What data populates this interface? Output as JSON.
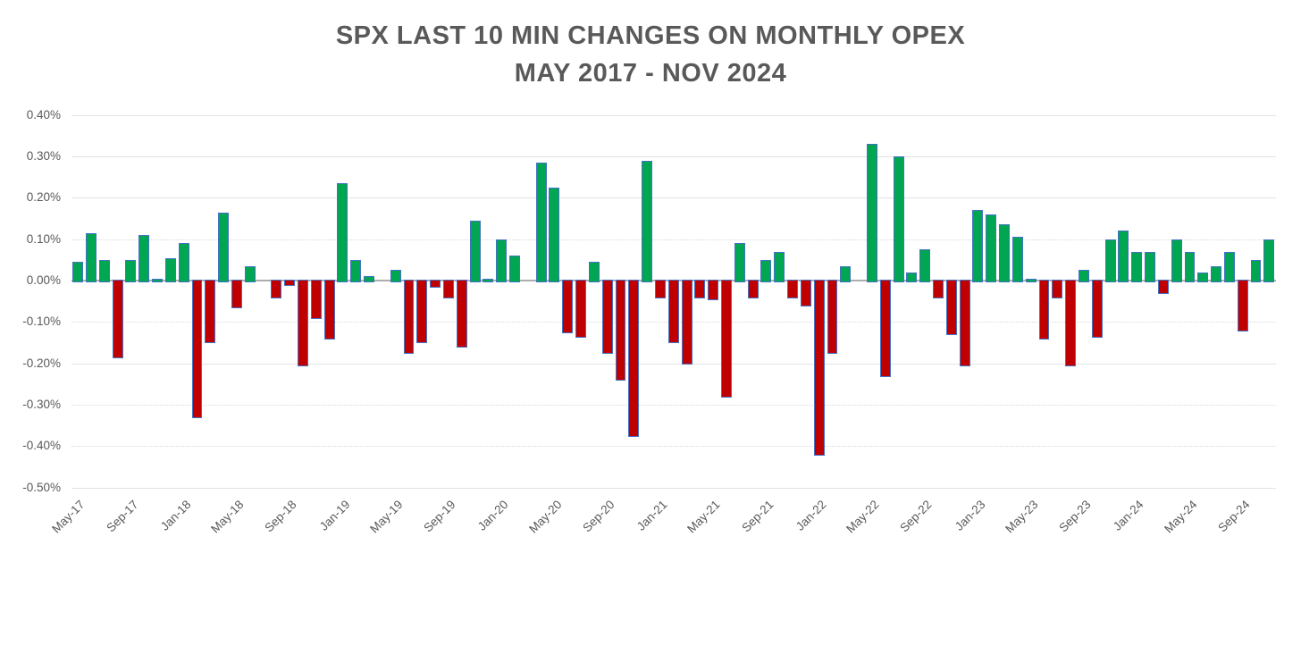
{
  "title": {
    "line1": "SPX LAST 10 MIN CHANGES ON MONTHLY OPEX",
    "line2": "MAY 2017 - NOV 2024"
  },
  "chart_data": {
    "type": "bar",
    "title": "SPX LAST 10 MIN CHANGES ON MONTHLY OPEX",
    "subtitle": "MAY 2017 - NOV 2024",
    "xlabel": "",
    "ylabel": "",
    "unit": "%",
    "ylim": [
      -0.5,
      0.4
    ],
    "y_tick_step": 0.1,
    "grid": true,
    "legend": false,
    "y_ticks": [
      "0.40%",
      "0.30%",
      "0.20%",
      "0.10%",
      "0.00%",
      "-0.10%",
      "-0.20%",
      "-0.30%",
      "-0.40%",
      "-0.50%"
    ],
    "x_axis_labeled_ticks": [
      "May-17",
      "Sep-17",
      "Jan-18",
      "May-18",
      "Sep-18",
      "Jan-19",
      "May-19",
      "Sep-19",
      "Jan-20",
      "May-20",
      "Sep-20",
      "Jan-21",
      "May-21",
      "Sep-21",
      "Jan-22",
      "May-22",
      "Sep-22",
      "Jan-23",
      "May-23",
      "Sep-23",
      "Jan-24",
      "May-24",
      "Sep-24"
    ],
    "categories": [
      "May-17",
      "Jun-17",
      "Jul-17",
      "Aug-17",
      "Sep-17",
      "Oct-17",
      "Nov-17",
      "Dec-17",
      "Jan-18",
      "Feb-18",
      "Mar-18",
      "Apr-18",
      "May-18",
      "Jun-18",
      "Jul-18",
      "Aug-18",
      "Sep-18",
      "Oct-18",
      "Nov-18",
      "Dec-18",
      "Jan-19",
      "Feb-19",
      "Mar-19",
      "Apr-19",
      "May-19",
      "Jun-19",
      "Jul-19",
      "Aug-19",
      "Sep-19",
      "Oct-19",
      "Nov-19",
      "Dec-19",
      "Jan-20",
      "Feb-20",
      "Mar-20",
      "Apr-20",
      "May-20",
      "Jun-20",
      "Jul-20",
      "Aug-20",
      "Sep-20",
      "Oct-20",
      "Nov-20",
      "Dec-20",
      "Jan-21",
      "Feb-21",
      "Mar-21",
      "Apr-21",
      "May-21",
      "Jun-21",
      "Jul-21",
      "Aug-21",
      "Sep-21",
      "Oct-21",
      "Nov-21",
      "Dec-21",
      "Jan-22",
      "Feb-22",
      "Mar-22",
      "Apr-22",
      "May-22",
      "Jun-22",
      "Jul-22",
      "Aug-22",
      "Sep-22",
      "Oct-22",
      "Nov-22",
      "Dec-22",
      "Jan-23",
      "Feb-23",
      "Mar-23",
      "Apr-23",
      "May-23",
      "Jun-23",
      "Jul-23",
      "Aug-23",
      "Sep-23",
      "Oct-23",
      "Nov-23",
      "Dec-23",
      "Jan-24",
      "Feb-24",
      "Mar-24",
      "Apr-24",
      "May-24",
      "Jun-24",
      "Jul-24",
      "Aug-24",
      "Sep-24",
      "Oct-24",
      "Nov-24"
    ],
    "values": [
      0.045,
      0.115,
      0.05,
      -0.185,
      0.05,
      0.11,
      0.005,
      0.055,
      0.09,
      -0.33,
      -0.15,
      0.165,
      -0.065,
      0.035,
      0,
      -0.04,
      -0.01,
      -0.205,
      -0.09,
      -0.14,
      0.235,
      0.05,
      0.01,
      0,
      0.025,
      -0.175,
      -0.15,
      -0.015,
      -0.04,
      -0.16,
      0.145,
      0.005,
      0.1,
      0.06,
      0,
      0.285,
      0.225,
      -0.125,
      -0.135,
      0.045,
      -0.175,
      -0.24,
      -0.375,
      0.29,
      -0.04,
      -0.15,
      -0.2,
      -0.04,
      -0.045,
      -0.28,
      0.09,
      -0.04,
      0.05,
      0.07,
      -0.04,
      -0.06,
      -0.42,
      -0.175,
      0.035,
      0,
      0.33,
      -0.23,
      0.3,
      0.02,
      0.075,
      -0.04,
      -0.13,
      -0.205,
      0.17,
      0.16,
      0.135,
      0.105,
      0.005,
      -0.14,
      -0.04,
      -0.205,
      0.025,
      -0.135,
      0.1,
      0.12,
      0.07,
      0.07,
      -0.03,
      0.1,
      0.07,
      0.02,
      0.035,
      0.07,
      -0.12,
      0.05,
      0.1
    ],
    "colors": {
      "positive_fill": "#00A651",
      "negative_fill": "#C00000",
      "bar_border": "#4472C4",
      "axis_text": "#595959",
      "title_text": "#595959",
      "gridline_solid": "#E2E2E2",
      "gridline_dotted": "#D9D9D9",
      "zero_line": "#ADADAD",
      "background": "#FFFFFF"
    }
  }
}
